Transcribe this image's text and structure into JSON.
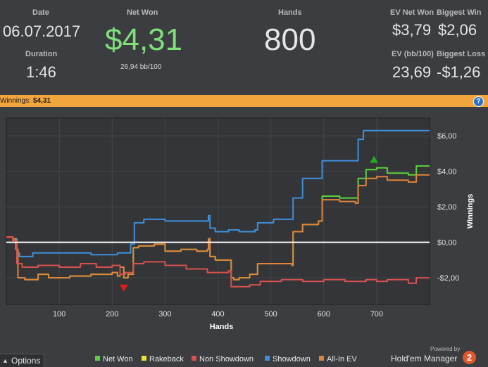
{
  "stats": {
    "date_label": "Date",
    "date_value": "06.07.2017",
    "duration_label": "Duration",
    "duration_value": "1:46",
    "net_won_label": "Net Won",
    "net_won_value": "$4,31",
    "bb_per_100": "26,94 bb/100",
    "hands_label": "Hands",
    "hands_value": "800",
    "ev_net_won_label": "EV Net Won",
    "ev_net_won_value": "$3,79",
    "biggest_win_label": "Biggest Win",
    "biggest_win_value": "$2,06",
    "ev_bb100_label": "EV (bb/100)",
    "ev_bb100_value": "23,69",
    "biggest_loss_label": "Biggest Loss",
    "biggest_loss_value": "-$1,26"
  },
  "winnings_bar": {
    "label": "Winnings:",
    "value": "$4,31",
    "help": "?"
  },
  "colors": {
    "net_won": "#5bd33b",
    "rakeback": "#e8e23a",
    "non_showdown": "#d9514e",
    "showdown": "#3f8fdc",
    "all_in_ev": "#e1843a",
    "zero_line": "#ffffff",
    "net_won_value_text": "#7fe07a",
    "winnings_bar_bg": "#f2a53c",
    "max_marker": "#22a722",
    "min_marker": "#e01b1b"
  },
  "footer": {
    "options_label": "Options",
    "powered_by": "Powered by",
    "brand": "Hold'em Manager",
    "brand_badge": "2"
  },
  "legend": [
    {
      "name": "Net Won",
      "color": "#5bd33b"
    },
    {
      "name": "Rakeback",
      "color": "#e8e23a"
    },
    {
      "name": "Non Showdown",
      "color": "#d9514e"
    },
    {
      "name": "Showdown",
      "color": "#3f8fdc"
    },
    {
      "name": "All-In EV",
      "color": "#e1843a"
    }
  ],
  "chart_data": {
    "type": "line",
    "xlabel": "Hands",
    "ylabel": "Winnings",
    "xlim": [
      0,
      800
    ],
    "ylim": [
      -3.5,
      7
    ],
    "x_ticks": [
      100,
      200,
      300,
      400,
      500,
      600,
      700
    ],
    "y_ticks": [
      6,
      4,
      2,
      0,
      -2
    ],
    "y_tick_labels": [
      "$6,00",
      "$4,00",
      "$2,00",
      "$0,00",
      "-$2,00"
    ],
    "grid": true,
    "max_marker": {
      "x": 695,
      "y": 4.6
    },
    "min_marker": {
      "x": 222,
      "y": -2.5
    },
    "series": [
      {
        "name": "Showdown",
        "color": "#3f8fdc",
        "points": [
          [
            0,
            0.3
          ],
          [
            12,
            0.2
          ],
          [
            20,
            -0.6
          ],
          [
            25,
            -0.8
          ],
          [
            40,
            -0.8
          ],
          [
            50,
            -0.6
          ],
          [
            100,
            -0.6
          ],
          [
            160,
            -0.7
          ],
          [
            210,
            -0.6
          ],
          [
            235,
            -0.1
          ],
          [
            240,
            -0.1
          ],
          [
            242,
            1.1
          ],
          [
            250,
            1.1
          ],
          [
            260,
            1.3
          ],
          [
            300,
            1.2
          ],
          [
            330,
            1.2
          ],
          [
            380,
            1.2
          ],
          [
            382,
            1.5
          ],
          [
            385,
            0.8
          ],
          [
            395,
            0.6
          ],
          [
            420,
            0.7
          ],
          [
            440,
            0.6
          ],
          [
            470,
            0.7
          ],
          [
            475,
            1.1
          ],
          [
            500,
            1.1
          ],
          [
            505,
            1.3
          ],
          [
            540,
            1.3
          ],
          [
            542,
            2.5
          ],
          [
            555,
            2.5
          ],
          [
            560,
            3.6
          ],
          [
            595,
            3.6
          ],
          [
            597,
            4.6
          ],
          [
            660,
            4.6
          ],
          [
            665,
            5.8
          ],
          [
            675,
            6.3
          ],
          [
            800,
            6.3
          ]
        ]
      },
      {
        "name": "Net Won",
        "color": "#5bd33b",
        "points": [
          [
            0,
            0.3
          ],
          [
            12,
            0.2
          ],
          [
            18,
            -0.4
          ],
          [
            22,
            -2.0
          ],
          [
            35,
            -2.1
          ],
          [
            60,
            -1.8
          ],
          [
            80,
            -2.0
          ],
          [
            120,
            -1.9
          ],
          [
            160,
            -1.8
          ],
          [
            200,
            -1.7
          ],
          [
            210,
            -1.9
          ],
          [
            215,
            -1.4
          ],
          [
            222,
            -2.0
          ],
          [
            230,
            -1.8
          ],
          [
            240,
            -0.3
          ],
          [
            250,
            -0.2
          ],
          [
            280,
            -0.1
          ],
          [
            300,
            -0.5
          ],
          [
            330,
            -0.4
          ],
          [
            360,
            -0.5
          ],
          [
            380,
            -0.4
          ],
          [
            382,
            0.2
          ],
          [
            385,
            -0.8
          ],
          [
            395,
            -1.0
          ],
          [
            420,
            -1.0
          ],
          [
            425,
            -2.0
          ],
          [
            430,
            -2.1
          ],
          [
            440,
            -2.0
          ],
          [
            460,
            -1.8
          ],
          [
            470,
            -1.8
          ],
          [
            475,
            -1.2
          ],
          [
            500,
            -1.2
          ],
          [
            540,
            -1.3
          ],
          [
            542,
            0.6
          ],
          [
            555,
            0.6
          ],
          [
            560,
            1.0
          ],
          [
            590,
            1.2
          ],
          [
            595,
            1.2
          ],
          [
            597,
            2.6
          ],
          [
            630,
            2.5
          ],
          [
            660,
            2.5
          ],
          [
            665,
            3.6
          ],
          [
            680,
            4.1
          ],
          [
            700,
            4.2
          ],
          [
            720,
            3.9
          ],
          [
            760,
            3.8
          ],
          [
            775,
            4.3
          ],
          [
            800,
            4.3
          ]
        ]
      },
      {
        "name": "All-In EV",
        "color": "#e1843a",
        "points": [
          [
            0,
            0.3
          ],
          [
            12,
            0.2
          ],
          [
            18,
            -0.4
          ],
          [
            22,
            -2.0
          ],
          [
            35,
            -2.1
          ],
          [
            60,
            -1.8
          ],
          [
            80,
            -2.0
          ],
          [
            120,
            -1.9
          ],
          [
            160,
            -1.8
          ],
          [
            200,
            -1.7
          ],
          [
            210,
            -1.9
          ],
          [
            215,
            -1.4
          ],
          [
            222,
            -2.0
          ],
          [
            230,
            -1.8
          ],
          [
            240,
            -0.3
          ],
          [
            250,
            -0.2
          ],
          [
            280,
            -0.1
          ],
          [
            300,
            -0.5
          ],
          [
            330,
            -0.4
          ],
          [
            360,
            -0.5
          ],
          [
            380,
            -0.4
          ],
          [
            382,
            0.2
          ],
          [
            385,
            -0.8
          ],
          [
            395,
            -1.0
          ],
          [
            420,
            -1.0
          ],
          [
            425,
            -2.0
          ],
          [
            430,
            -2.1
          ],
          [
            440,
            -2.0
          ],
          [
            460,
            -1.8
          ],
          [
            470,
            -1.8
          ],
          [
            475,
            -1.2
          ],
          [
            500,
            -1.2
          ],
          [
            540,
            -1.3
          ],
          [
            542,
            0.6
          ],
          [
            555,
            0.6
          ],
          [
            560,
            1.0
          ],
          [
            590,
            1.2
          ],
          [
            595,
            1.2
          ],
          [
            597,
            2.4
          ],
          [
            630,
            2.3
          ],
          [
            660,
            2.2
          ],
          [
            665,
            3.2
          ],
          [
            680,
            3.6
          ],
          [
            700,
            3.7
          ],
          [
            720,
            3.5
          ],
          [
            760,
            3.4
          ],
          [
            775,
            3.8
          ],
          [
            800,
            3.8
          ]
        ]
      },
      {
        "name": "Non Showdown",
        "color": "#d9514e",
        "points": [
          [
            0,
            0.3
          ],
          [
            12,
            0.1
          ],
          [
            20,
            -1.2
          ],
          [
            30,
            -1.4
          ],
          [
            60,
            -1.3
          ],
          [
            100,
            -1.4
          ],
          [
            140,
            -1.2
          ],
          [
            170,
            -1.4
          ],
          [
            200,
            -1.3
          ],
          [
            215,
            -1.8
          ],
          [
            225,
            -1.7
          ],
          [
            240,
            -1.2
          ],
          [
            260,
            -1.1
          ],
          [
            300,
            -1.3
          ],
          [
            340,
            -1.5
          ],
          [
            380,
            -1.7
          ],
          [
            420,
            -1.6
          ],
          [
            425,
            -2.5
          ],
          [
            460,
            -2.4
          ],
          [
            480,
            -2.2
          ],
          [
            520,
            -2.1
          ],
          [
            560,
            -2.2
          ],
          [
            600,
            -2.1
          ],
          [
            640,
            -2.2
          ],
          [
            680,
            -2.1
          ],
          [
            700,
            -2.2
          ],
          [
            720,
            -2.1
          ],
          [
            760,
            -2.3
          ],
          [
            775,
            -2.0
          ],
          [
            800,
            -2.0
          ]
        ]
      },
      {
        "name": "Rakeback",
        "color": "#e8e23a",
        "points": []
      }
    ]
  }
}
